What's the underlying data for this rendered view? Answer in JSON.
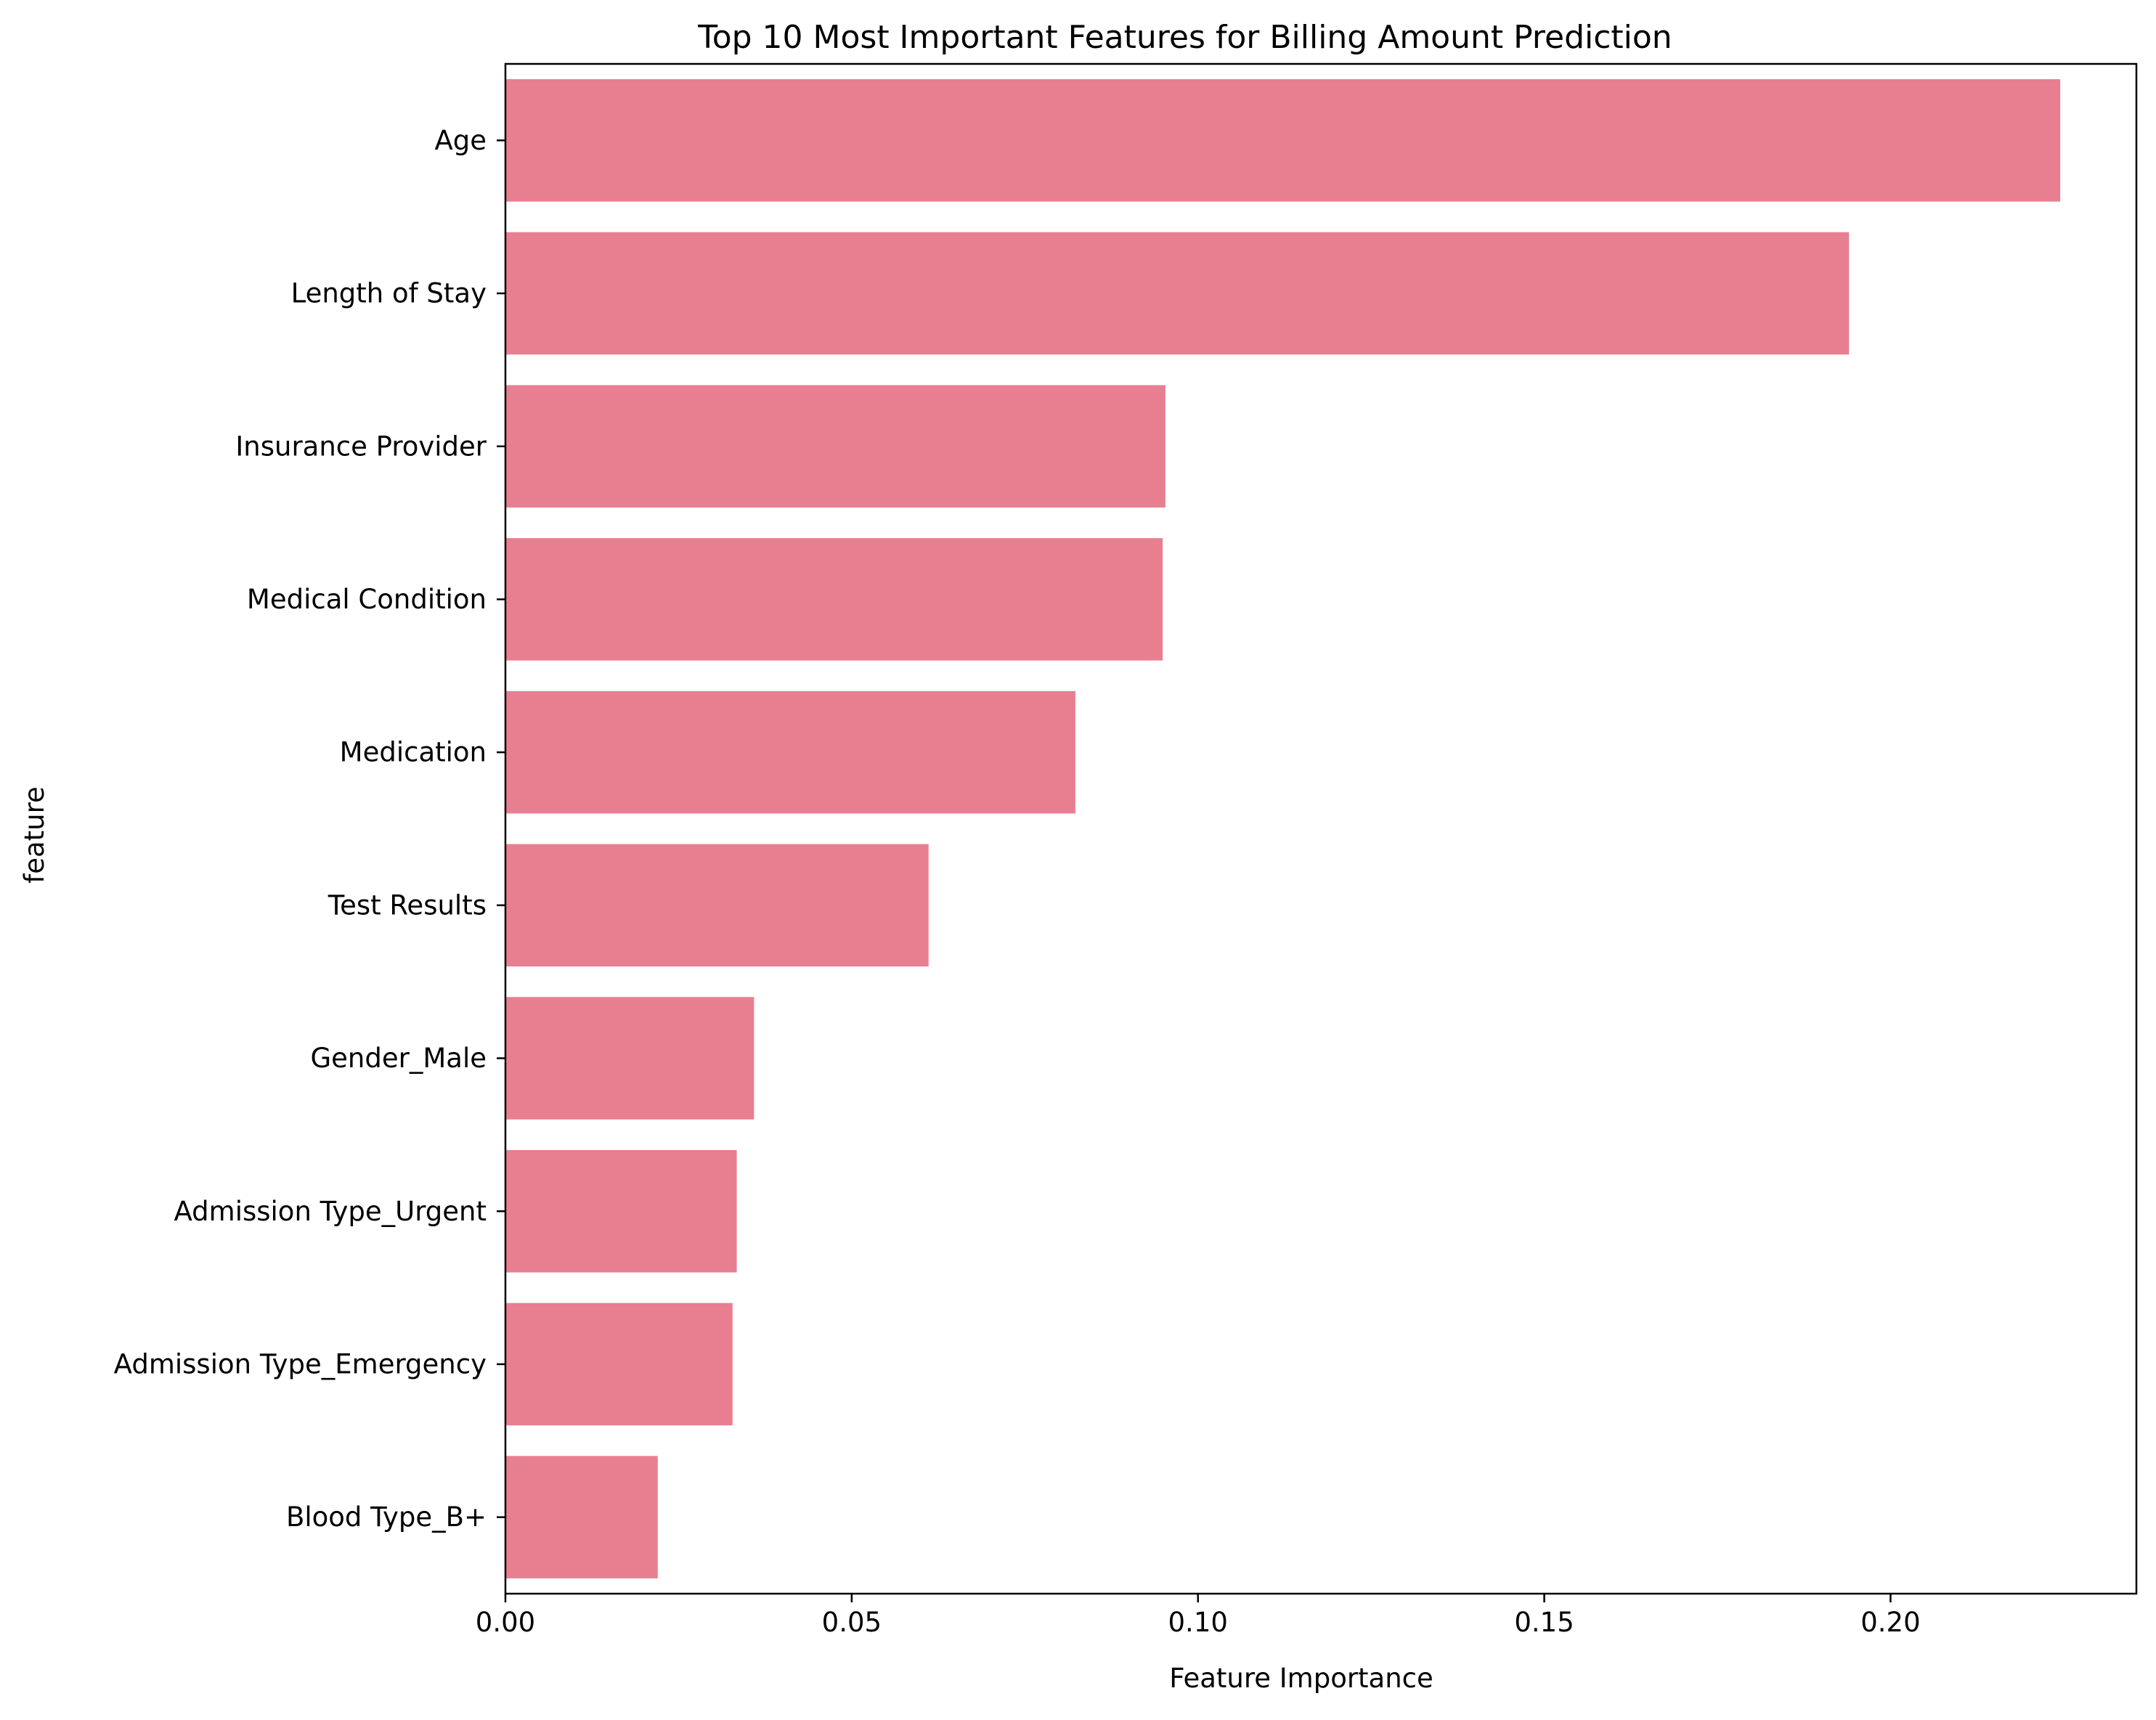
{
  "chart_data": {
    "type": "bar",
    "orientation": "horizontal",
    "title": "Top 10 Most Important Features for Billing Amount Prediction",
    "xlabel": "Feature Importance",
    "ylabel": "feature",
    "categories": [
      "Age",
      "Length of Stay",
      "Insurance Provider",
      "Medical Condition",
      "Medication",
      "Test Results",
      "Gender_Male",
      "Admission Type_Urgent",
      "Admission Type_Emergency",
      "Blood Type_B+"
    ],
    "values": [
      0.2245,
      0.194,
      0.0953,
      0.0949,
      0.0823,
      0.0611,
      0.0359,
      0.0334,
      0.0328,
      0.022
    ],
    "xlim": [
      0,
      0.2355
    ],
    "xticks": [
      0.0,
      0.05,
      0.1,
      0.15,
      0.2
    ],
    "xtick_labels": [
      "0.00",
      "0.05",
      "0.10",
      "0.15",
      "0.20"
    ],
    "grid": false,
    "legend": "none",
    "bar_color": "#e77f91"
  }
}
